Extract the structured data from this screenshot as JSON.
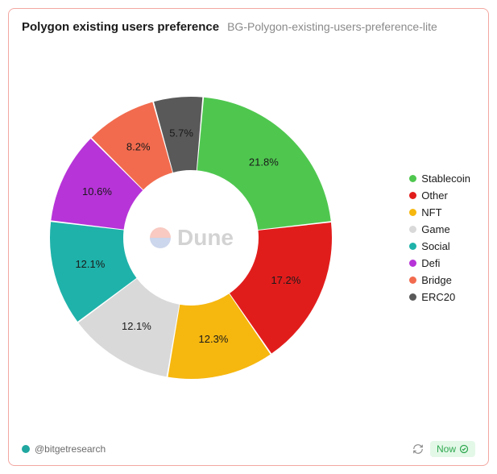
{
  "card": {
    "title": "Polygon existing users preference",
    "subtitle": "BG-Polygon-existing-users-preference-lite",
    "border_color": "#f3a7a0",
    "background_color": "#ffffff"
  },
  "chart": {
    "type": "donut",
    "inner_radius_ratio": 0.48,
    "outer_radius": 175,
    "start_angle_deg": -85,
    "slice_gap_deg": 0.6,
    "label_fontsize": 13,
    "label_color": "#1a1a1a",
    "slices": [
      {
        "name": "Stablecoin",
        "value": 21.8,
        "color": "#4fc74f",
        "label": "21.8%"
      },
      {
        "name": "Other",
        "value": 17.2,
        "color": "#e11d1c",
        "label": "17.2%"
      },
      {
        "name": "NFT",
        "value": 12.3,
        "color": "#f6b70f",
        "label": "12.3%"
      },
      {
        "name": "Game",
        "value": 12.1,
        "color": "#d9d9d9",
        "label": "12.1%"
      },
      {
        "name": "Social",
        "value": 12.1,
        "color": "#1fb2aa",
        "label": "12.1%"
      },
      {
        "name": "Defi",
        "value": 10.6,
        "color": "#b734d8",
        "label": "10.6%"
      },
      {
        "name": "Bridge",
        "value": 8.2,
        "color": "#f26b4e",
        "label": "8.2%"
      },
      {
        "name": "ERC20",
        "value": 5.7,
        "color": "#595959",
        "label": "5.7%"
      }
    ]
  },
  "watermark": {
    "text": "Dune",
    "text_color": "#9e9e9e",
    "logo_top_color": "#f08b7a",
    "logo_bottom_color": "#8fa5d6"
  },
  "legend": {
    "fontsize": 13,
    "position": "right"
  },
  "footer": {
    "author": "@bitgetresearch",
    "author_dot_color": "#1fa7a0",
    "now_label": "Now",
    "now_bg": "#e4f8e8",
    "now_color": "#2fa84f"
  }
}
